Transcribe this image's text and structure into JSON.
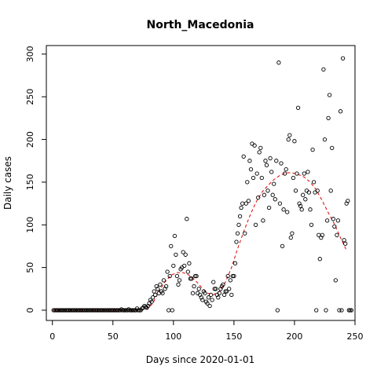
{
  "chart_data": {
    "type": "scatter",
    "title": "North_Macedonia",
    "xlabel": "Days since 2020-01-01",
    "ylabel": "Daily cases",
    "xlim": [
      -5,
      250
    ],
    "ylim": [
      -12,
      310
    ],
    "x_ticks": [
      0,
      50,
      100,
      150,
      200,
      250
    ],
    "y_ticks": [
      0,
      50,
      100,
      150,
      200,
      250,
      300
    ],
    "x_tick_labels": [
      "0",
      "50",
      "100",
      "150",
      "200",
      "250"
    ],
    "y_tick_labels": [
      "0",
      "50",
      "100",
      "150",
      "200",
      "250",
      "300"
    ],
    "grid": false,
    "legend": "none",
    "series": [
      {
        "kind": "points",
        "color": "#000000",
        "points": [
          [
            1,
            0
          ],
          [
            2,
            0
          ],
          [
            3,
            0
          ],
          [
            4,
            0
          ],
          [
            5,
            0
          ],
          [
            6,
            0
          ],
          [
            7,
            0
          ],
          [
            8,
            0
          ],
          [
            9,
            0
          ],
          [
            10,
            0
          ],
          [
            11,
            0
          ],
          [
            12,
            0
          ],
          [
            13,
            0
          ],
          [
            14,
            0
          ],
          [
            15,
            0
          ],
          [
            16,
            0
          ],
          [
            17,
            0
          ],
          [
            18,
            0
          ],
          [
            19,
            0
          ],
          [
            20,
            0
          ],
          [
            21,
            0
          ],
          [
            22,
            0
          ],
          [
            23,
            0
          ],
          [
            24,
            0
          ],
          [
            25,
            0
          ],
          [
            26,
            0
          ],
          [
            27,
            0
          ],
          [
            28,
            0
          ],
          [
            29,
            0
          ],
          [
            30,
            0
          ],
          [
            31,
            0
          ],
          [
            32,
            0
          ],
          [
            33,
            0
          ],
          [
            34,
            0
          ],
          [
            35,
            0
          ],
          [
            36,
            0
          ],
          [
            37,
            0
          ],
          [
            38,
            0
          ],
          [
            39,
            0
          ],
          [
            40,
            0
          ],
          [
            41,
            0
          ],
          [
            42,
            0
          ],
          [
            43,
            0
          ],
          [
            44,
            0
          ],
          [
            45,
            0
          ],
          [
            46,
            0
          ],
          [
            47,
            0
          ],
          [
            48,
            0
          ],
          [
            49,
            0
          ],
          [
            50,
            0
          ],
          [
            51,
            0
          ],
          [
            52,
            0
          ],
          [
            53,
            0
          ],
          [
            54,
            0
          ],
          [
            55,
            0
          ],
          [
            56,
            0
          ],
          [
            57,
            1
          ],
          [
            58,
            0
          ],
          [
            59,
            0
          ],
          [
            60,
            0
          ],
          [
            61,
            0
          ],
          [
            62,
            0
          ],
          [
            63,
            1
          ],
          [
            64,
            0
          ],
          [
            65,
            0
          ],
          [
            66,
            0
          ],
          [
            67,
            0
          ],
          [
            68,
            0
          ],
          [
            69,
            0
          ],
          [
            70,
            2
          ],
          [
            71,
            0
          ],
          [
            72,
            0
          ],
          [
            73,
            0
          ],
          [
            74,
            2
          ],
          [
            75,
            3
          ],
          [
            76,
            5
          ],
          [
            77,
            4
          ],
          [
            78,
            3
          ],
          [
            79,
            5
          ],
          [
            80,
            8
          ],
          [
            81,
            12
          ],
          [
            82,
            10
          ],
          [
            83,
            15
          ],
          [
            84,
            22
          ],
          [
            85,
            18
          ],
          [
            86,
            28
          ],
          [
            87,
            25
          ],
          [
            88,
            20
          ],
          [
            89,
            30
          ],
          [
            90,
            22
          ],
          [
            91,
            20
          ],
          [
            92,
            35
          ],
          [
            93,
            25
          ],
          [
            94,
            28
          ],
          [
            95,
            45
          ],
          [
            96,
            0
          ],
          [
            97,
            40
          ],
          [
            98,
            75
          ],
          [
            99,
            0
          ],
          [
            100,
            52
          ],
          [
            101,
            87
          ],
          [
            102,
            65
          ],
          [
            103,
            40
          ],
          [
            104,
            30
          ],
          [
            105,
            35
          ],
          [
            106,
            48
          ],
          [
            107,
            50
          ],
          [
            108,
            68
          ],
          [
            109,
            52
          ],
          [
            110,
            65
          ],
          [
            111,
            107
          ],
          [
            112,
            45
          ],
          [
            113,
            55
          ],
          [
            114,
            37
          ],
          [
            115,
            37
          ],
          [
            116,
            20
          ],
          [
            117,
            28
          ],
          [
            118,
            40
          ],
          [
            119,
            40
          ],
          [
            120,
            20
          ],
          [
            121,
            25
          ],
          [
            122,
            18
          ],
          [
            123,
            15
          ],
          [
            124,
            12
          ],
          [
            125,
            22
          ],
          [
            126,
            20
          ],
          [
            127,
            10
          ],
          [
            128,
            8
          ],
          [
            129,
            15
          ],
          [
            130,
            5
          ],
          [
            131,
            18
          ],
          [
            132,
            12
          ],
          [
            133,
            33
          ],
          [
            134,
            25
          ],
          [
            135,
            25
          ],
          [
            136,
            18
          ],
          [
            137,
            15
          ],
          [
            138,
            20
          ],
          [
            139,
            25
          ],
          [
            140,
            28
          ],
          [
            141,
            30
          ],
          [
            142,
            18
          ],
          [
            143,
            22
          ],
          [
            144,
            22
          ],
          [
            145,
            40
          ],
          [
            146,
            25
          ],
          [
            147,
            35
          ],
          [
            148,
            18
          ],
          [
            149,
            40
          ],
          [
            150,
            40
          ],
          [
            151,
            55
          ],
          [
            152,
            80
          ],
          [
            153,
            90
          ],
          [
            154,
            100
          ],
          [
            155,
            110
          ],
          [
            156,
            120
          ],
          [
            157,
            125
          ],
          [
            158,
            180
          ],
          [
            159,
            90
          ],
          [
            160,
            125
          ],
          [
            161,
            150
          ],
          [
            162,
            128
          ],
          [
            163,
            175
          ],
          [
            164,
            165
          ],
          [
            165,
            195
          ],
          [
            166,
            155
          ],
          [
            167,
            193
          ],
          [
            168,
            100
          ],
          [
            169,
            160
          ],
          [
            170,
            132
          ],
          [
            171,
            185
          ],
          [
            172,
            190
          ],
          [
            173,
            155
          ],
          [
            174,
            105
          ],
          [
            175,
            135
          ],
          [
            176,
            175
          ],
          [
            177,
            170
          ],
          [
            178,
            140
          ],
          [
            179,
            120
          ],
          [
            180,
            178
          ],
          [
            181,
            162
          ],
          [
            182,
            135
          ],
          [
            183,
            148
          ],
          [
            184,
            130
          ],
          [
            185,
            175
          ],
          [
            186,
            0
          ],
          [
            187,
            290
          ],
          [
            188,
            125
          ],
          [
            189,
            172
          ],
          [
            190,
            75
          ],
          [
            191,
            118
          ],
          [
            192,
            160
          ],
          [
            193,
            165
          ],
          [
            194,
            115
          ],
          [
            195,
            200
          ],
          [
            196,
            205
          ],
          [
            197,
            85
          ],
          [
            198,
            90
          ],
          [
            199,
            155
          ],
          [
            200,
            198
          ],
          [
            201,
            140
          ],
          [
            202,
            160
          ],
          [
            203,
            237
          ],
          [
            204,
            125
          ],
          [
            205,
            122
          ],
          [
            206,
            118
          ],
          [
            207,
            135
          ],
          [
            208,
            160
          ],
          [
            209,
            130
          ],
          [
            210,
            140
          ],
          [
            211,
            162
          ],
          [
            212,
            138
          ],
          [
            213,
            118
          ],
          [
            214,
            100
          ],
          [
            215,
            188
          ],
          [
            216,
            150
          ],
          [
            217,
            138
          ],
          [
            218,
            0
          ],
          [
            219,
            140
          ],
          [
            220,
            88
          ],
          [
            221,
            60
          ],
          [
            222,
            85
          ],
          [
            223,
            88
          ],
          [
            224,
            282
          ],
          [
            225,
            200
          ],
          [
            226,
            0
          ],
          [
            227,
            105
          ],
          [
            228,
            225
          ],
          [
            229,
            252
          ],
          [
            230,
            140
          ],
          [
            231,
            190
          ],
          [
            232,
            107
          ],
          [
            233,
            98
          ],
          [
            234,
            35
          ],
          [
            235,
            88
          ],
          [
            236,
            105
          ],
          [
            237,
            0
          ],
          [
            238,
            233
          ],
          [
            239,
            0
          ],
          [
            240,
            295
          ],
          [
            241,
            82
          ],
          [
            242,
            78
          ],
          [
            243,
            125
          ],
          [
            244,
            128
          ],
          [
            245,
            0
          ],
          [
            246,
            0
          ],
          [
            247,
            0
          ]
        ]
      },
      {
        "kind": "smooth-line",
        "color": "#e00000",
        "style": "dashed",
        "points": [
          [
            0,
            0
          ],
          [
            20,
            0
          ],
          [
            40,
            0
          ],
          [
            60,
            0
          ],
          [
            70,
            0
          ],
          [
            78,
            1
          ],
          [
            83,
            8
          ],
          [
            88,
            22
          ],
          [
            93,
            33
          ],
          [
            98,
            41
          ],
          [
            103,
            44
          ],
          [
            108,
            44
          ],
          [
            113,
            41
          ],
          [
            118,
            35
          ],
          [
            123,
            27
          ],
          [
            128,
            20
          ],
          [
            133,
            18
          ],
          [
            138,
            22
          ],
          [
            143,
            33
          ],
          [
            148,
            50
          ],
          [
            153,
            72
          ],
          [
            158,
            92
          ],
          [
            163,
            110
          ],
          [
            168,
            126
          ],
          [
            173,
            138
          ],
          [
            178,
            146
          ],
          [
            183,
            153
          ],
          [
            188,
            158
          ],
          [
            193,
            161
          ],
          [
            198,
            161
          ],
          [
            203,
            159
          ],
          [
            208,
            156
          ],
          [
            213,
            150
          ],
          [
            218,
            141
          ],
          [
            223,
            128
          ],
          [
            228,
            114
          ],
          [
            233,
            101
          ],
          [
            238,
            85
          ],
          [
            243,
            70
          ]
        ]
      }
    ]
  }
}
